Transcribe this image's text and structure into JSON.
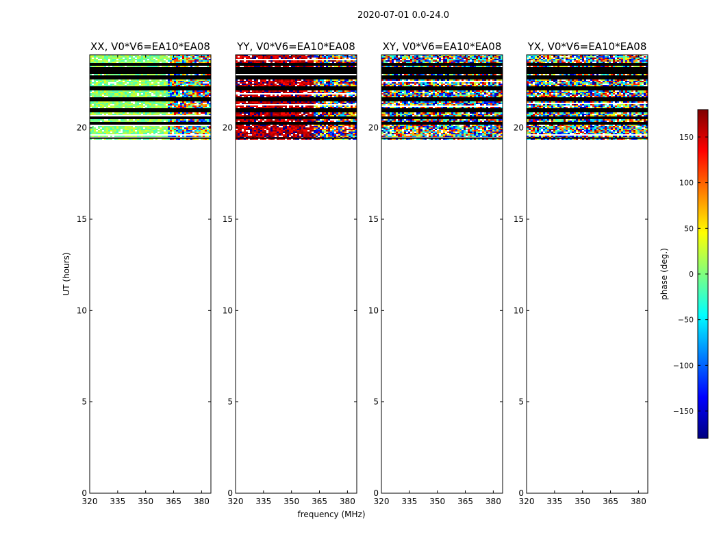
{
  "chart_data": {
    "type": "heatmap",
    "suptitle": "2020-07-01 0.0-24.0",
    "xlabel": "frequency (MHz)",
    "ylabel": "UT (hours)",
    "xlim": [
      320,
      385
    ],
    "ylim": [
      0,
      24
    ],
    "xticks": [
      320,
      335,
      350,
      365,
      380
    ],
    "yticks": [
      0,
      5,
      10,
      15,
      20
    ],
    "colorbar": {
      "label": "phase (deg.)",
      "range": [
        -180,
        180
      ],
      "ticks": [
        150,
        100,
        50,
        0,
        -50,
        -100,
        -150
      ],
      "tick_labels": [
        "150",
        "100",
        "50",
        "0",
        "−50",
        "−100",
        "−150"
      ],
      "colormap": "jet",
      "colors": [
        "#00007f",
        "#0000ff",
        "#007fff",
        "#00ffff",
        "#7fff7f",
        "#ffff00",
        "#ff7f00",
        "#ff0000",
        "#7f0000"
      ]
    },
    "data_extent_hours": [
      19.4,
      24.0
    ],
    "panels": [
      {
        "title": "XX, V0*V6=EA10*EA08",
        "pattern": "smooth-greenish-left-noisy-right",
        "mean_phase_deg": 5
      },
      {
        "title": "YY, V0*V6=EA10*EA08",
        "pattern": "smooth-red-left-noisy-right",
        "mean_phase_deg": 160
      },
      {
        "title": "XY, V0*V6=EA10*EA08",
        "pattern": "noisy-uniform",
        "mean_phase_deg": 0
      },
      {
        "title": "YX, V0*V6=EA10*EA08",
        "pattern": "noisy-uniform",
        "mean_phase_deg": -30
      }
    ],
    "flagged_rows_hours": [
      20.3,
      20.6,
      21.0,
      21.6,
      22.2,
      22.8,
      23.1,
      23.3,
      23.5
    ]
  }
}
